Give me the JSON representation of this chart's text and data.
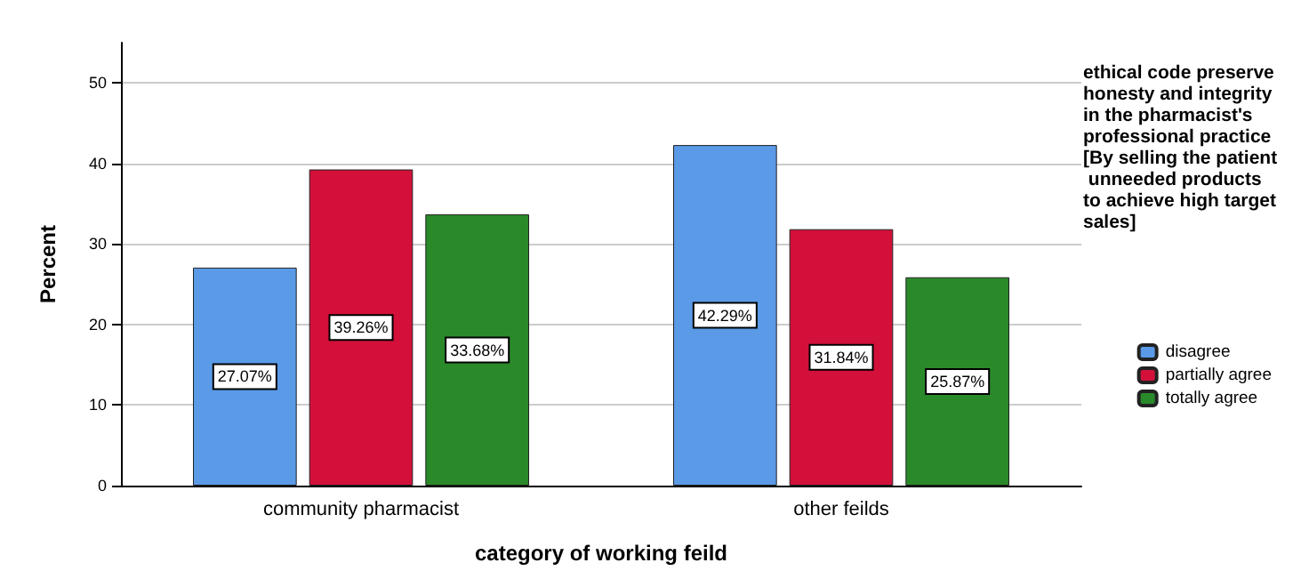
{
  "chart_data": {
    "type": "bar",
    "xlabel": "category of working feild",
    "ylabel": "Percent",
    "legend_title": "ethical code preserve honesty and integrity in the pharmacist's professional practice [By selling the patient unneeded products to achieve high target sales]",
    "categories": [
      "community pharmacist",
      "other feilds"
    ],
    "series": [
      {
        "name": "disagree",
        "color": "#5a9ae6",
        "values": [
          27.07,
          42.29
        ],
        "value_labels": [
          "27.07%",
          "42.29%"
        ]
      },
      {
        "name": "partially agree",
        "color": "#d2103a",
        "values": [
          39.26,
          31.84
        ],
        "value_labels": [
          "39.26%",
          "31.84%"
        ]
      },
      {
        "name": "totally agree",
        "color": "#2a8a2a",
        "values": [
          33.68,
          25.87
        ],
        "value_labels": [
          "33.68%",
          "25.87%"
        ]
      }
    ],
    "ylim": [
      0,
      55
    ],
    "yticks": [
      0,
      10,
      20,
      30,
      40,
      50
    ],
    "grid": "y",
    "legend": "right"
  }
}
